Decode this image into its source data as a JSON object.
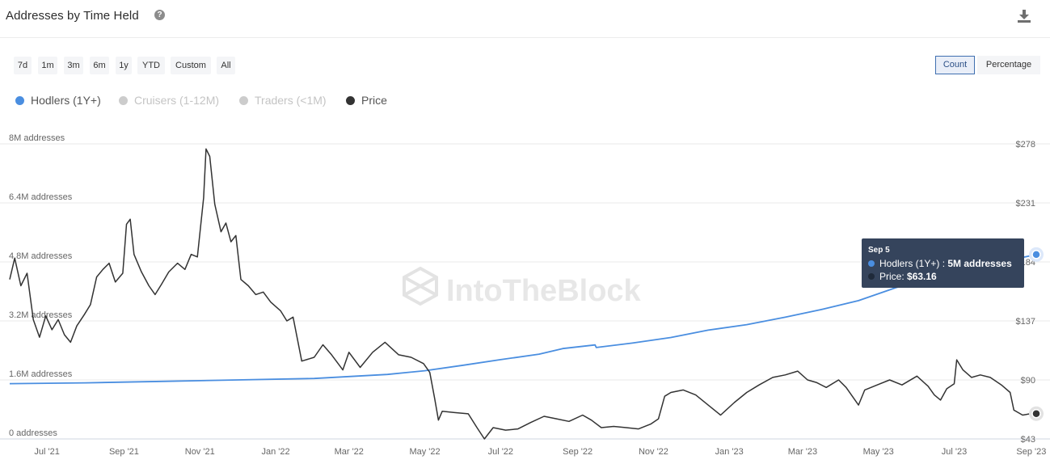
{
  "header": {
    "title": "Addresses by Time Held"
  },
  "ranges": [
    "7d",
    "1m",
    "3m",
    "6m",
    "1y",
    "YTD",
    "Custom",
    "All"
  ],
  "modes": {
    "count": "Count",
    "percentage": "Percentage",
    "active": "count"
  },
  "legend": [
    {
      "label": "Hodlers (1Y+)",
      "color": "#4a8ee0",
      "active": true
    },
    {
      "label": "Cruisers (1-12M)",
      "color": "#cccccc",
      "active": false
    },
    {
      "label": "Traders (<1M)",
      "color": "#cccccc",
      "active": false
    },
    {
      "label": "Price",
      "color": "#333333",
      "active": true
    }
  ],
  "watermark": "IntoTheBlock",
  "tooltip": {
    "date": "Sep 5",
    "hodlers_label": "Hodlers (1Y+) : ",
    "hodlers_value": "5M addresses",
    "price_label": "Price: ",
    "price_value": "$63.16"
  },
  "chart_data": {
    "type": "line",
    "date_range": [
      "2021-06-01",
      "2023-09-05"
    ],
    "x_ticks": [
      {
        "label": "Jul '21",
        "date": "2021-07-01"
      },
      {
        "label": "Sep '21",
        "date": "2021-09-01"
      },
      {
        "label": "Nov '21",
        "date": "2021-11-01"
      },
      {
        "label": "Jan '22",
        "date": "2022-01-01"
      },
      {
        "label": "Mar '22",
        "date": "2022-03-01"
      },
      {
        "label": "May '22",
        "date": "2022-05-01"
      },
      {
        "label": "Jul '22",
        "date": "2022-07-01"
      },
      {
        "label": "Sep '22",
        "date": "2022-09-01"
      },
      {
        "label": "Nov '22",
        "date": "2022-11-01"
      },
      {
        "label": "Jan '23",
        "date": "2023-01-01"
      },
      {
        "label": "Mar '23",
        "date": "2023-03-01"
      },
      {
        "label": "May '23",
        "date": "2023-05-01"
      },
      {
        "label": "Jul '23",
        "date": "2023-07-01"
      },
      {
        "label": "Sep '23",
        "date": "2023-09-01"
      }
    ],
    "y_left": {
      "ylim": [
        0,
        8000000
      ],
      "ticks": [
        {
          "value": 0,
          "label": "0 addresses"
        },
        {
          "value": 1600000,
          "label": "1.6M addresses"
        },
        {
          "value": 3200000,
          "label": "3.2M addresses"
        },
        {
          "value": 4800000,
          "label": "4.8M addresses"
        },
        {
          "value": 6400000,
          "label": "6.4M addresses"
        },
        {
          "value": 8000000,
          "label": "8M addresses"
        }
      ]
    },
    "y_right": {
      "ylim": [
        43,
        278
      ],
      "ticks": [
        {
          "value": 43,
          "label": "$43"
        },
        {
          "value": 90,
          "label": "$90"
        },
        {
          "value": 137,
          "label": "$137"
        },
        {
          "value": 184,
          "label": "$184"
        },
        {
          "value": 231,
          "label": "$231"
        },
        {
          "value": 278,
          "label": "$278"
        }
      ]
    },
    "grid": true,
    "series": [
      {
        "name": "Hodlers (1Y+)",
        "axis": "left",
        "color": "#4a8ee0",
        "points": [
          [
            "2021-06-01",
            1500000
          ],
          [
            "2021-08-01",
            1520000
          ],
          [
            "2021-10-01",
            1560000
          ],
          [
            "2021-12-01",
            1600000
          ],
          [
            "2022-02-01",
            1640000
          ],
          [
            "2022-04-01",
            1750000
          ],
          [
            "2022-05-01",
            1850000
          ],
          [
            "2022-06-01",
            2000000
          ],
          [
            "2022-07-01",
            2150000
          ],
          [
            "2022-08-01",
            2300000
          ],
          [
            "2022-08-20",
            2450000
          ],
          [
            "2022-09-15",
            2550000
          ],
          [
            "2022-09-16",
            2480000
          ],
          [
            "2022-10-15",
            2600000
          ],
          [
            "2022-11-15",
            2750000
          ],
          [
            "2022-12-15",
            2950000
          ],
          [
            "2023-01-15",
            3100000
          ],
          [
            "2023-02-15",
            3300000
          ],
          [
            "2023-03-15",
            3500000
          ],
          [
            "2023-04-15",
            3750000
          ],
          [
            "2023-05-15",
            4100000
          ],
          [
            "2023-06-15",
            4400000
          ],
          [
            "2023-07-15",
            4650000
          ],
          [
            "2023-08-15",
            4850000
          ],
          [
            "2023-09-05",
            5000000
          ]
        ]
      },
      {
        "name": "Price",
        "axis": "right",
        "color": "#333333",
        "points": [
          [
            "2021-06-01",
            170
          ],
          [
            "2021-06-05",
            187
          ],
          [
            "2021-06-10",
            165
          ],
          [
            "2021-06-15",
            175
          ],
          [
            "2021-06-20",
            138
          ],
          [
            "2021-06-25",
            124
          ],
          [
            "2021-06-30",
            141
          ],
          [
            "2021-07-05",
            130
          ],
          [
            "2021-07-10",
            138
          ],
          [
            "2021-07-15",
            126
          ],
          [
            "2021-07-20",
            120
          ],
          [
            "2021-07-25",
            133
          ],
          [
            "2021-07-31",
            142
          ],
          [
            "2021-08-05",
            150
          ],
          [
            "2021-08-10",
            172
          ],
          [
            "2021-08-15",
            178
          ],
          [
            "2021-08-20",
            183
          ],
          [
            "2021-08-25",
            168
          ],
          [
            "2021-08-31",
            175
          ],
          [
            "2021-09-03",
            214
          ],
          [
            "2021-09-06",
            218
          ],
          [
            "2021-09-09",
            190
          ],
          [
            "2021-09-15",
            176
          ],
          [
            "2021-09-21",
            165
          ],
          [
            "2021-09-26",
            158
          ],
          [
            "2021-10-01",
            166
          ],
          [
            "2021-10-07",
            176
          ],
          [
            "2021-10-14",
            183
          ],
          [
            "2021-10-20",
            178
          ],
          [
            "2021-10-25",
            190
          ],
          [
            "2021-10-30",
            188
          ],
          [
            "2021-11-04",
            235
          ],
          [
            "2021-11-06",
            274
          ],
          [
            "2021-11-09",
            268
          ],
          [
            "2021-11-13",
            230
          ],
          [
            "2021-11-18",
            208
          ],
          [
            "2021-11-22",
            215
          ],
          [
            "2021-11-26",
            200
          ],
          [
            "2021-11-30",
            205
          ],
          [
            "2021-12-04",
            170
          ],
          [
            "2021-12-10",
            165
          ],
          [
            "2021-12-16",
            158
          ],
          [
            "2021-12-22",
            160
          ],
          [
            "2021-12-28",
            152
          ],
          [
            "2022-01-05",
            145
          ],
          [
            "2022-01-10",
            137
          ],
          [
            "2022-01-15",
            140
          ],
          [
            "2022-01-22",
            105
          ],
          [
            "2022-02-01",
            108
          ],
          [
            "2022-02-08",
            118
          ],
          [
            "2022-02-15",
            110
          ],
          [
            "2022-02-24",
            98
          ],
          [
            "2022-03-01",
            112
          ],
          [
            "2022-03-10",
            100
          ],
          [
            "2022-03-20",
            112
          ],
          [
            "2022-03-30",
            120
          ],
          [
            "2022-04-10",
            110
          ],
          [
            "2022-04-20",
            108
          ],
          [
            "2022-04-30",
            103
          ],
          [
            "2022-05-05",
            96
          ],
          [
            "2022-05-09",
            75
          ],
          [
            "2022-05-12",
            58
          ],
          [
            "2022-05-15",
            65
          ],
          [
            "2022-05-25",
            64
          ],
          [
            "2022-06-05",
            63
          ],
          [
            "2022-06-12",
            52
          ],
          [
            "2022-06-18",
            43
          ],
          [
            "2022-06-25",
            52
          ],
          [
            "2022-07-05",
            50
          ],
          [
            "2022-07-15",
            51
          ],
          [
            "2022-07-25",
            56
          ],
          [
            "2022-08-05",
            61
          ],
          [
            "2022-08-15",
            59
          ],
          [
            "2022-08-25",
            57
          ],
          [
            "2022-09-05",
            62
          ],
          [
            "2022-09-12",
            58
          ],
          [
            "2022-09-20",
            52
          ],
          [
            "2022-09-30",
            53
          ],
          [
            "2022-10-10",
            52
          ],
          [
            "2022-10-20",
            51
          ],
          [
            "2022-10-30",
            55
          ],
          [
            "2022-11-05",
            59
          ],
          [
            "2022-11-10",
            77
          ],
          [
            "2022-11-15",
            80
          ],
          [
            "2022-11-25",
            82
          ],
          [
            "2022-12-05",
            78
          ],
          [
            "2022-12-15",
            70
          ],
          [
            "2022-12-25",
            62
          ],
          [
            "2023-01-05",
            72
          ],
          [
            "2023-01-15",
            80
          ],
          [
            "2023-01-25",
            86
          ],
          [
            "2023-02-05",
            92
          ],
          [
            "2023-02-15",
            94
          ],
          [
            "2023-02-25",
            97
          ],
          [
            "2023-03-05",
            90
          ],
          [
            "2023-03-12",
            88
          ],
          [
            "2023-03-20",
            84
          ],
          [
            "2023-03-30",
            90
          ],
          [
            "2023-04-05",
            84
          ],
          [
            "2023-04-15",
            70
          ],
          [
            "2023-04-20",
            82
          ],
          [
            "2023-04-30",
            86
          ],
          [
            "2023-05-10",
            90
          ],
          [
            "2023-05-20",
            86
          ],
          [
            "2023-06-01",
            93
          ],
          [
            "2023-06-10",
            85
          ],
          [
            "2023-06-15",
            78
          ],
          [
            "2023-06-20",
            74
          ],
          [
            "2023-06-25",
            83
          ],
          [
            "2023-07-01",
            87
          ],
          [
            "2023-07-03",
            106
          ],
          [
            "2023-07-08",
            98
          ],
          [
            "2023-07-15",
            92
          ],
          [
            "2023-07-22",
            94
          ],
          [
            "2023-07-30",
            92
          ],
          [
            "2023-08-08",
            86
          ],
          [
            "2023-08-15",
            80
          ],
          [
            "2023-08-18",
            66
          ],
          [
            "2023-08-25",
            62
          ],
          [
            "2023-08-31",
            63
          ],
          [
            "2023-09-05",
            63.16
          ]
        ]
      }
    ]
  }
}
